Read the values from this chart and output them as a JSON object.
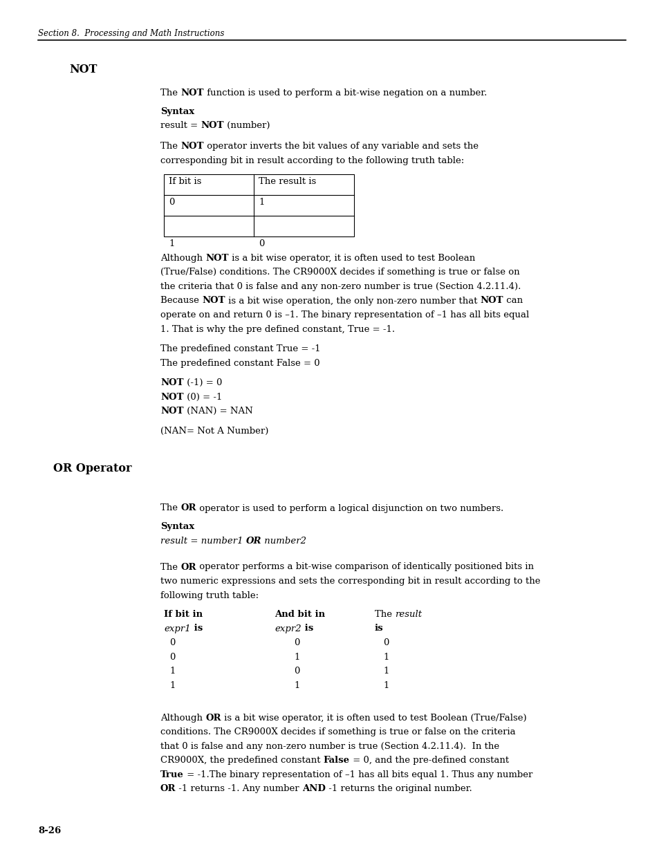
{
  "page_width": 9.54,
  "page_height": 12.35,
  "bg_color": "#ffffff",
  "header_text": "Section 8.  Processing and Math Instructions",
  "footer_text": "8-26",
  "dpi": 100
}
